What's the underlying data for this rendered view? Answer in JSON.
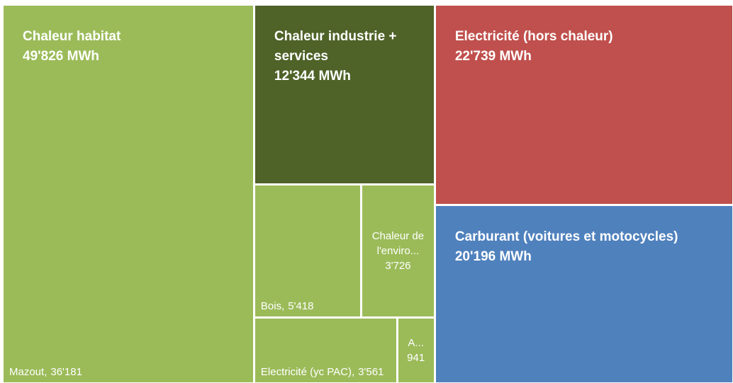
{
  "chart_data": {
    "type": "treemap",
    "groups": [
      {
        "name": "Chaleur habitat",
        "value": 49826,
        "value_label": "49'826 MWh",
        "color": "#9bbb59",
        "children": [
          {
            "name": "Mazout,",
            "value": 36181,
            "value_label": "36'181"
          },
          {
            "name": "Bois,",
            "value": 5418,
            "value_label": "5'418"
          },
          {
            "name": "Chaleur de l'enviro...",
            "value": 3726,
            "value_label": "3'726"
          },
          {
            "name": "Electricité (yc PAC),",
            "value": 3561,
            "value_label": "3'561"
          },
          {
            "name": "A...",
            "value": 941,
            "value_label": "941"
          }
        ]
      },
      {
        "name": "Chaleur industrie + services",
        "value": 12344,
        "value_label": "12'344 MWh",
        "color": "#4f6228"
      },
      {
        "name": "Electricité (hors chaleur)",
        "value": 22739,
        "value_label": "22'739 MWh",
        "color": "#c0504d"
      },
      {
        "name": "Carburant (voitures et motocycles)",
        "value": 20196,
        "value_label": "20'196 MWh",
        "color": "#4f81bd"
      }
    ]
  }
}
